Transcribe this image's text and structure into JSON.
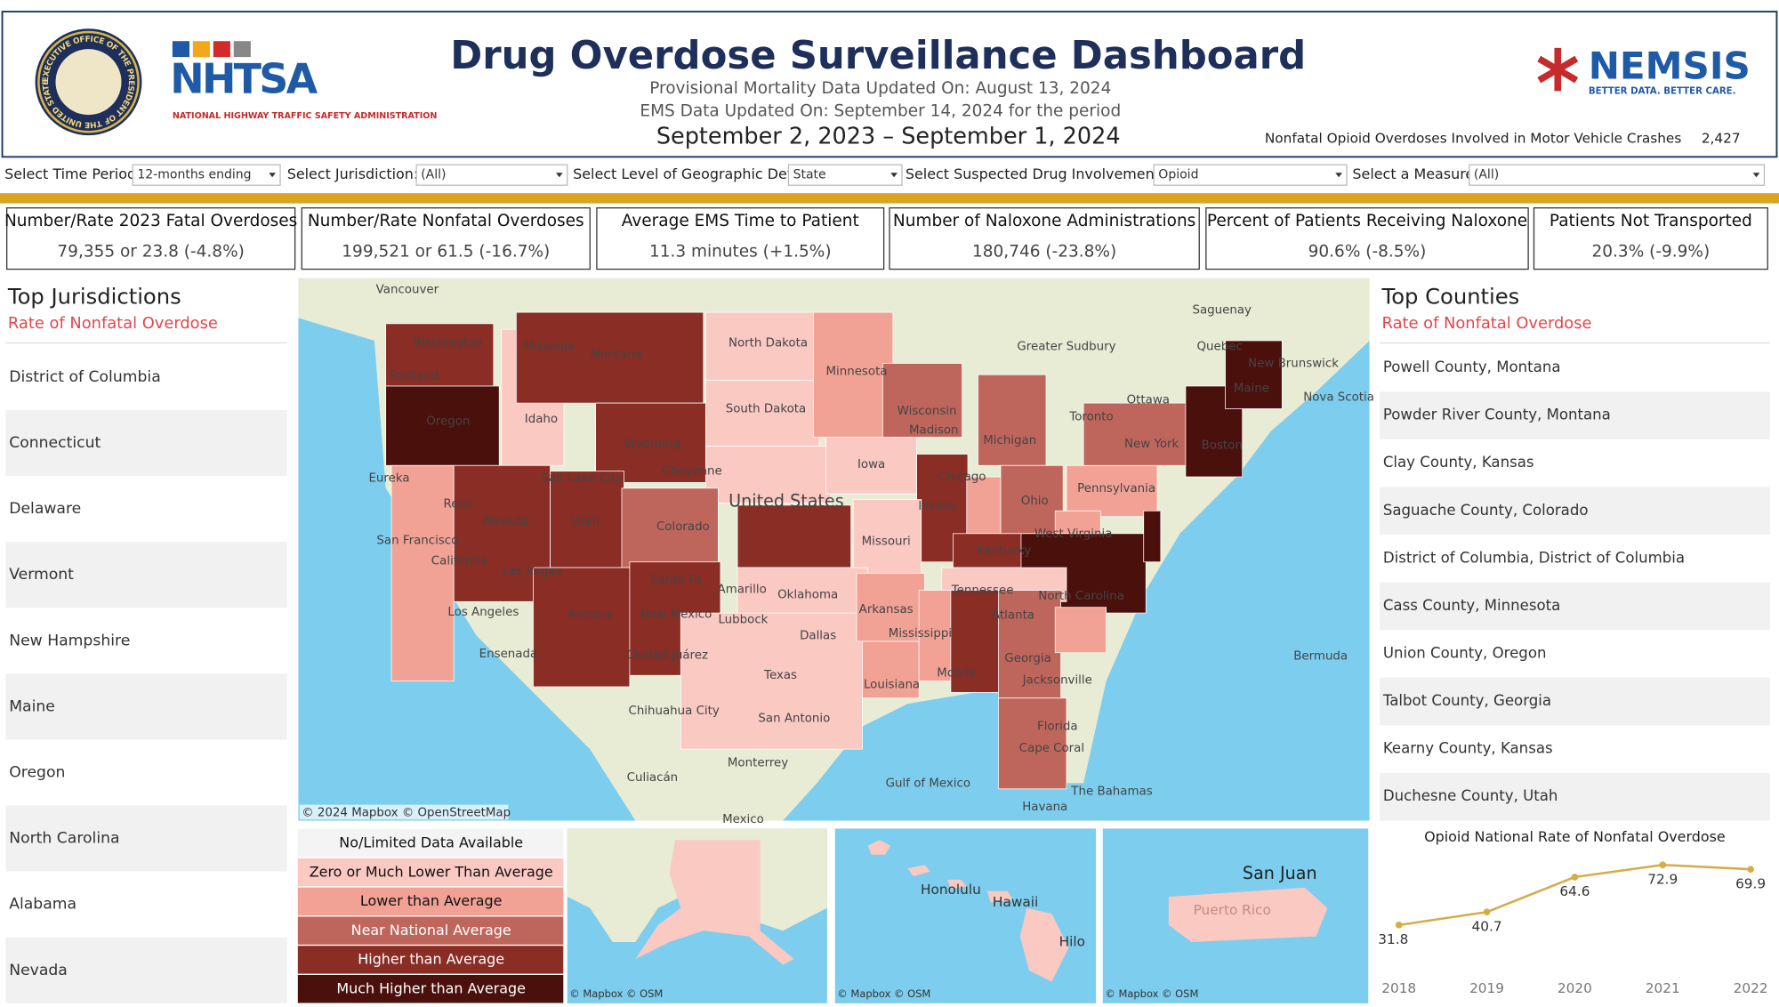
{
  "header": {
    "title": "Drug Overdose Surveillance Dashboard",
    "mortality_update": "Provisional Mortality Data Updated On: August 13, 2024",
    "ems_update": "EMS Data Updated On: September 14, 2024 for the period",
    "period": "September 2, 2023 – September 1, 2024",
    "seal_text": "EXECUTIVE OFFICE OF THE PRESIDENT OF THE UNITED STATES",
    "nhtsa": "NHTSA",
    "nhtsa_sub": "NATIONAL HIGHWAY TRAFFIC SAFETY ADMINISTRATION",
    "nemsis": "NEMSIS",
    "nemsis_sub": "BETTER DATA. BETTER CARE.",
    "crash_label": "Nonfatal Opioid Overdoses Involved in Motor Vehicle Crashes",
    "crash_value": "2,427"
  },
  "filters": [
    {
      "label": "Select Time Period:",
      "value": "12-months ending"
    },
    {
      "label": "Select Jurisdiction:",
      "value": "(All)"
    },
    {
      "label": "Select Level of Geographic Detail:",
      "value": "State"
    },
    {
      "label": "Select Suspected Drug Involvement:",
      "value": "Opioid"
    },
    {
      "label": "Select a Measure:",
      "value": "(All)"
    }
  ],
  "kpis": [
    {
      "title": "Number/Rate 2023 Fatal Overdoses",
      "value": "79,355 or 23.8 (-4.8%)"
    },
    {
      "title": "Number/Rate Nonfatal Overdoses",
      "value": "199,521 or 61.5 (-16.7%)"
    },
    {
      "title": "Average EMS Time to Patient",
      "value": "11.3 minutes (+1.5%)"
    },
    {
      "title": "Number of Naloxone Administrations",
      "value": "180,746 (-23.8%)"
    },
    {
      "title": "Percent of Patients Receiving Naloxone",
      "value": "90.6% (-8.5%)"
    },
    {
      "title": "Patients Not Transported",
      "value": "20.3% (-9.9%)"
    }
  ],
  "jurisdictions": {
    "title": "Top Jurisdictions",
    "subtitle": "Rate of Nonfatal Overdose",
    "items": [
      "District of Columbia",
      "Connecticut",
      "Delaware",
      "Vermont",
      "New Hampshire",
      "Maine",
      "Oregon",
      "North Carolina",
      "Alabama",
      "Nevada"
    ]
  },
  "counties": {
    "title": "Top Counties",
    "subtitle": "Rate of Nonfatal Overdose",
    "items": [
      "Powell County, Montana",
      "Powder River County, Montana",
      "Clay County, Kansas",
      "Saguache County, Colorado",
      "District of Columbia, District of Columbia",
      "Cass County, Minnesota",
      "Union County, Oregon",
      "Talbot County, Georgia",
      "Kearny County, Kansas",
      "Duchesne County, Utah"
    ]
  },
  "legend": [
    {
      "label": "No/Limited Data Available",
      "color": "#f4f4f4"
    },
    {
      "label": "Zero or Much Lower Than Average",
      "color": "#f9c9c2"
    },
    {
      "label": "Lower than Average",
      "color": "#f2a295"
    },
    {
      "label": "Near National Average",
      "color": "#bf665c"
    },
    {
      "label": "Higher than Average",
      "color": "#8a2d25"
    },
    {
      "label": "Much Higher than Average",
      "color": "#4a100c"
    }
  ],
  "map": {
    "attribution": "© 2024 Mapbox  © OpenStreetMap",
    "inset_attribution": "© Mapbox  © OSM",
    "labels": [
      "Vancouver",
      "Washington",
      "Portland",
      "Oregon",
      "Idaho",
      "Missoula",
      "Montana",
      "Wyoming",
      "North Dakota",
      "Minnesota",
      "South Dakota",
      "Wisconsin",
      "Madison",
      "Michigan",
      "Greater Sudbury",
      "Toronto",
      "Ottawa",
      "Quebec",
      "Saguenay",
      "New Brunswick",
      "Nova Scotia",
      "Maine",
      "New York",
      "Boston",
      "Eureka",
      "Reno",
      "Salt Lake City",
      "Cheyenne",
      "Nevada",
      "Utah",
      "Colorado",
      "United States",
      "Iowa",
      "Chicago",
      "Illinois",
      "Ohio",
      "Pennsylvania",
      "San Francisco",
      "California",
      "Las Vegas",
      "Missouri",
      "Kentucky",
      "West Virginia",
      "Santa Fe",
      "New Mexico",
      "Arizona",
      "Amarillo",
      "Oklahoma",
      "Lubbock",
      "Tennessee",
      "North Carolina",
      "Arkansas",
      "Los Angeles",
      "Atlanta",
      "Dallas",
      "Mississippi",
      "Ensenada",
      "Ciudad Juárez",
      "Georgia",
      "Bermuda",
      "Texas",
      "Louisiana",
      "Mobile",
      "Jacksonville",
      "San Antonio",
      "Chihuahua City",
      "Florida",
      "Cape Coral",
      "Monterrey",
      "Gulf of Mexico",
      "Culiacán",
      "The Bahamas",
      "Havana",
      "Mexico"
    ],
    "hawaii_labels": [
      "Honolulu",
      "Hawaii",
      "Hilo"
    ],
    "pr_labels": [
      "San Juan",
      "Puerto Rico"
    ]
  },
  "chart_data": {
    "type": "line",
    "title": "Opioid National Rate of Nonfatal Overdose",
    "categories": [
      "2018",
      "2019",
      "2020",
      "2021",
      "2022"
    ],
    "series": [
      {
        "name": "Opioid",
        "color": "#d4ad4a",
        "values": [
          31.8,
          40.7,
          64.6,
          72.9,
          69.9
        ]
      }
    ]
  }
}
